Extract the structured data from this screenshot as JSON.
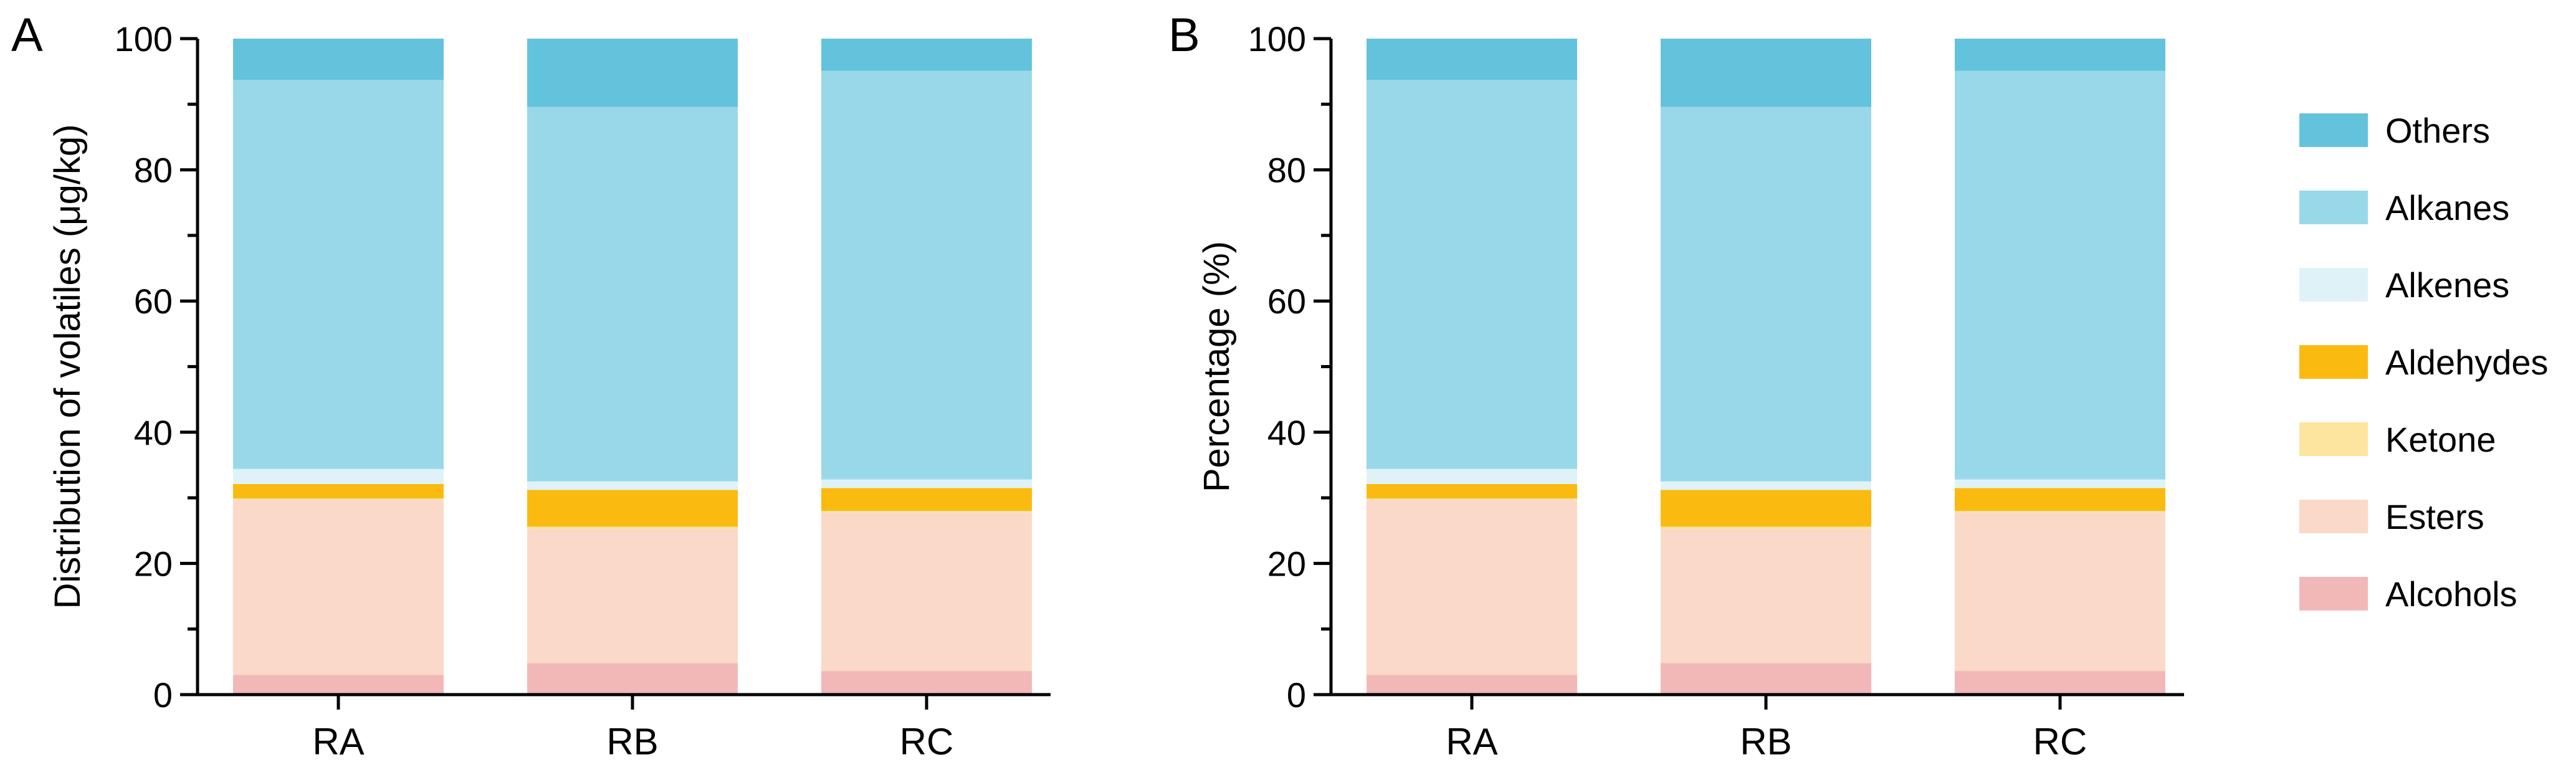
{
  "chart_data": [
    {
      "panel": "A",
      "type": "bar",
      "stacked": true,
      "categories": [
        "RA",
        "RB",
        "RC"
      ],
      "ylabel": "Distribution of volatiles (μg/kg)",
      "xlabel": "",
      "ylim": [
        0,
        100
      ],
      "yticks": [
        "0",
        "20",
        "40",
        "60",
        "80",
        "100"
      ],
      "series": [
        {
          "name": "Alcohols",
          "values": [
            3.0,
            4.8,
            3.6
          ]
        },
        {
          "name": "Esters",
          "values": [
            26.7,
            20.5,
            24.2
          ]
        },
        {
          "name": "Ketone",
          "values": [
            0.2,
            0.3,
            0.2
          ]
        },
        {
          "name": "Aldehydes",
          "values": [
            2.2,
            5.6,
            3.5
          ]
        },
        {
          "name": "Alkenes",
          "values": [
            2.3,
            1.3,
            1.3
          ]
        },
        {
          "name": "Alkanes",
          "values": [
            59.3,
            57.1,
            62.3
          ]
        },
        {
          "name": "Others",
          "values": [
            6.3,
            10.4,
            4.9
          ]
        }
      ]
    },
    {
      "panel": "B",
      "type": "bar",
      "stacked": true,
      "categories": [
        "RA",
        "RB",
        "RC"
      ],
      "ylabel": "Percentage (%)",
      "xlabel": "",
      "ylim": [
        0,
        100
      ],
      "yticks": [
        "0",
        "20",
        "40",
        "60",
        "80",
        "100"
      ],
      "series": [
        {
          "name": "Alcohols",
          "values": [
            3.0,
            4.8,
            3.6
          ]
        },
        {
          "name": "Esters",
          "values": [
            26.7,
            20.5,
            24.2
          ]
        },
        {
          "name": "Ketone",
          "values": [
            0.2,
            0.3,
            0.2
          ]
        },
        {
          "name": "Aldehydes",
          "values": [
            2.2,
            5.6,
            3.5
          ]
        },
        {
          "name": "Alkenes",
          "values": [
            2.3,
            1.3,
            1.3
          ]
        },
        {
          "name": "Alkanes",
          "values": [
            59.3,
            57.1,
            62.3
          ]
        },
        {
          "name": "Others",
          "values": [
            6.3,
            10.4,
            4.9
          ]
        }
      ]
    }
  ],
  "legend": {
    "items": [
      {
        "name": "Others",
        "color": "#64c3dc"
      },
      {
        "name": "Alkanes",
        "color": "#99d8e8"
      },
      {
        "name": "Alkenes",
        "color": "#dff2f8"
      },
      {
        "name": "Aldehydes",
        "color": "#fbba10"
      },
      {
        "name": "Ketone",
        "color": "#fde5a0"
      },
      {
        "name": "Esters",
        "color": "#fbd9c8"
      },
      {
        "name": "Alcohols",
        "color": "#f1b8b7"
      }
    ]
  },
  "colors": {
    "Others": "#64c3dc",
    "Alkanes": "#99d8e8",
    "Alkenes": "#dff2f8",
    "Aldehydes": "#fbba10",
    "Ketone": "#fde5a0",
    "Esters": "#fbd9c8",
    "Alcohols": "#f1b8b7"
  }
}
